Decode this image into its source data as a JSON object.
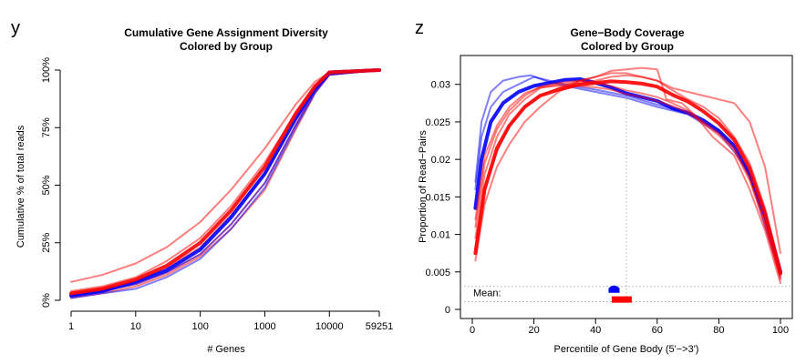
{
  "chart_data": [
    {
      "panel_letter": "y",
      "type": "line",
      "title_line1": "Cumulative Gene Assignment Diversity",
      "title_line2": "Colored by Group",
      "xlabel": "# Genes",
      "ylabel": "Cumulative % of total reads",
      "x_scale": "log",
      "xlim": [
        1,
        59251
      ],
      "ylim": [
        0,
        100
      ],
      "x_ticks": [
        1,
        10,
        100,
        1000,
        10000,
        59251
      ],
      "x_tick_labels": [
        "1",
        "10",
        "100",
        "1000",
        "10000",
        "59251"
      ],
      "y_ticks": [
        0,
        25,
        50,
        75,
        100
      ],
      "y_tick_labels": [
        "0%",
        "25%",
        "50%",
        "75%",
        "100%"
      ],
      "colors": {
        "red": "#ff0000",
        "blue": "#0000ff"
      },
      "series": [
        {
          "color": "red",
          "alpha": 0.5,
          "width": 2,
          "x": [
            1,
            3,
            10,
            30,
            100,
            300,
            1000,
            3000,
            6000,
            10000,
            59251
          ],
          "y": [
            8,
            11,
            16,
            23,
            34,
            48,
            66,
            85,
            95,
            99,
            100
          ]
        },
        {
          "color": "red",
          "alpha": 0.5,
          "width": 2,
          "x": [
            1,
            3,
            10,
            30,
            100,
            300,
            1000,
            3000,
            6000,
            10000,
            59251
          ],
          "y": [
            4,
            6,
            10,
            17,
            27,
            41,
            60,
            81,
            93,
            99,
            100
          ]
        },
        {
          "color": "red",
          "alpha": 0.5,
          "width": 2,
          "x": [
            1,
            3,
            10,
            30,
            100,
            300,
            1000,
            3000,
            6000,
            10000,
            59251
          ],
          "y": [
            3,
            5,
            8,
            14,
            23,
            37,
            55,
            78,
            92,
            98,
            100
          ]
        },
        {
          "color": "red",
          "alpha": 0.5,
          "width": 2,
          "x": [
            1,
            3,
            10,
            30,
            100,
            300,
            1000,
            3000,
            6000,
            10000,
            59251
          ],
          "y": [
            2,
            4,
            7,
            12,
            20,
            33,
            51,
            76,
            91,
            98,
            100
          ]
        },
        {
          "color": "red",
          "alpha": 0.5,
          "width": 2,
          "x": [
            1,
            3,
            10,
            30,
            100,
            300,
            1000,
            3000,
            6000,
            10000,
            59251
          ],
          "y": [
            1,
            3,
            6,
            11,
            19,
            31,
            48,
            74,
            90,
            98,
            100
          ]
        },
        {
          "color": "blue",
          "alpha": 0.5,
          "width": 2,
          "x": [
            1,
            3,
            10,
            30,
            100,
            300,
            1000,
            3000,
            6000,
            10000,
            59251
          ],
          "y": [
            2,
            4,
            7,
            12,
            20,
            33,
            51,
            76,
            91,
            98,
            100
          ]
        },
        {
          "color": "blue",
          "alpha": 0.5,
          "width": 2,
          "x": [
            1,
            3,
            10,
            30,
            100,
            300,
            1000,
            3000,
            6000,
            10000,
            59251
          ],
          "y": [
            1,
            3,
            5,
            10,
            18,
            31,
            49,
            75,
            90,
            98,
            100
          ]
        },
        {
          "color": "blue",
          "alpha": 0.9,
          "width": 4,
          "x": [
            1,
            3,
            10,
            30,
            100,
            300,
            1000,
            3000,
            6000,
            10000,
            59251
          ],
          "y": [
            2,
            4,
            8,
            13,
            22,
            36,
            55,
            79,
            92,
            99,
            100
          ]
        },
        {
          "color": "red",
          "alpha": 0.9,
          "width": 4,
          "x": [
            1,
            3,
            10,
            30,
            100,
            300,
            1000,
            3000,
            6000,
            10000,
            59251
          ],
          "y": [
            3,
            5,
            9,
            15,
            25,
            39,
            58,
            81,
            93,
            99,
            100
          ]
        }
      ]
    },
    {
      "panel_letter": "z",
      "type": "line",
      "title_line1": "Gene−Body Coverage",
      "title_line2": "Colored by Group",
      "xlabel": "Percentile of Gene Body (5'−>3')",
      "ylabel": "Proportion of Read−Pairs",
      "xlim": [
        0,
        100
      ],
      "ylim": [
        0,
        0.033
      ],
      "x_ticks": [
        0,
        20,
        40,
        60,
        80,
        100
      ],
      "x_tick_labels": [
        "0",
        "20",
        "40",
        "60",
        "80",
        "100"
      ],
      "y_ticks": [
        0,
        0.005,
        0.01,
        0.015,
        0.02,
        0.025,
        0.03
      ],
      "y_tick_labels": [
        "0",
        "0.005",
        "0.01",
        "0.015",
        "0.02",
        "0.025",
        "0.03"
      ],
      "mean_label": "Mean:",
      "mean_markers": {
        "blue": 46,
        "red": 48.5
      },
      "mean_marker_y": {
        "blue": 0.0027,
        "red": 0.0015
      },
      "mean_reference_x": 50,
      "colors": {
        "red": "#ff0000",
        "blue": "#0000ff"
      },
      "series": [
        {
          "color": "blue",
          "alpha": 0.5,
          "width": 2,
          "x": [
            1,
            3,
            6,
            10,
            15,
            19,
            25,
            30,
            40,
            50,
            60,
            70,
            80,
            85,
            90,
            95,
            100
          ],
          "y": [
            0.017,
            0.025,
            0.029,
            0.0305,
            0.031,
            0.0312,
            0.0303,
            0.0298,
            0.029,
            0.0282,
            0.027,
            0.026,
            0.0235,
            0.021,
            0.018,
            0.011,
            0.0045
          ]
        },
        {
          "color": "blue",
          "alpha": 0.5,
          "width": 2,
          "x": [
            1,
            3,
            6,
            10,
            15,
            20,
            25,
            30,
            40,
            50,
            60,
            70,
            80,
            85,
            90,
            95,
            100
          ],
          "y": [
            0.016,
            0.023,
            0.027,
            0.029,
            0.03,
            0.031,
            0.0305,
            0.03,
            0.0293,
            0.0285,
            0.0273,
            0.0262,
            0.0238,
            0.0215,
            0.0182,
            0.012,
            0.0048
          ]
        },
        {
          "color": "blue",
          "alpha": 0.9,
          "width": 4,
          "x": [
            1,
            3,
            6,
            10,
            15,
            20,
            25,
            30,
            35,
            40,
            45,
            50,
            60,
            65,
            70,
            75,
            80,
            85,
            90,
            95,
            100
          ],
          "y": [
            0.0135,
            0.02,
            0.025,
            0.0275,
            0.029,
            0.0298,
            0.0302,
            0.0306,
            0.0307,
            0.0302,
            0.0296,
            0.0288,
            0.0278,
            0.0268,
            0.0262,
            0.0252,
            0.0238,
            0.0218,
            0.018,
            0.0125,
            0.005
          ]
        },
        {
          "color": "red",
          "alpha": 0.5,
          "width": 2,
          "x": [
            1,
            4,
            8,
            12,
            17,
            22,
            28,
            35,
            40,
            45,
            50,
            55,
            60,
            63,
            68,
            72,
            78,
            85,
            90,
            95,
            100
          ],
          "y": [
            0.0065,
            0.014,
            0.019,
            0.022,
            0.025,
            0.027,
            0.029,
            0.0305,
            0.031,
            0.0318,
            0.032,
            0.0322,
            0.032,
            0.028,
            0.0275,
            0.026,
            0.023,
            0.0205,
            0.016,
            0.0105,
            0.0035
          ]
        },
        {
          "color": "red",
          "alpha": 0.5,
          "width": 2,
          "x": [
            1,
            4,
            8,
            12,
            17,
            22,
            28,
            35,
            40,
            45,
            50,
            55,
            60,
            65,
            70,
            75,
            80,
            85,
            90,
            95,
            100
          ],
          "y": [
            0.008,
            0.016,
            0.021,
            0.0245,
            0.027,
            0.0285,
            0.0295,
            0.0305,
            0.031,
            0.0315,
            0.0315,
            0.031,
            0.0305,
            0.0295,
            0.029,
            0.0285,
            0.028,
            0.0275,
            0.025,
            0.019,
            0.0075
          ]
        },
        {
          "color": "red",
          "alpha": 0.5,
          "width": 2,
          "x": [
            1,
            4,
            8,
            12,
            17,
            22,
            28,
            35,
            40,
            45,
            50,
            55,
            60,
            65,
            70,
            75,
            80,
            85,
            90,
            95,
            100
          ],
          "y": [
            0.0095,
            0.018,
            0.023,
            0.026,
            0.028,
            0.0295,
            0.03,
            0.0302,
            0.0305,
            0.031,
            0.0312,
            0.031,
            0.0305,
            0.0292,
            0.028,
            0.027,
            0.0255,
            0.023,
            0.0195,
            0.0135,
            0.0055
          ]
        },
        {
          "color": "red",
          "alpha": 0.5,
          "width": 2,
          "x": [
            1,
            4,
            8,
            12,
            17,
            22,
            28,
            35,
            40,
            45,
            50,
            55,
            60,
            65,
            70,
            75,
            80,
            85,
            90,
            95,
            100
          ],
          "y": [
            0.011,
            0.0195,
            0.024,
            0.0265,
            0.0285,
            0.0297,
            0.0302,
            0.0305,
            0.0302,
            0.0298,
            0.0292,
            0.0288,
            0.0283,
            0.0275,
            0.0265,
            0.025,
            0.0235,
            0.0215,
            0.0175,
            0.0115,
            0.004
          ]
        },
        {
          "color": "red",
          "alpha": 0.5,
          "width": 2,
          "x": [
            1,
            4,
            8,
            12,
            17,
            22,
            28,
            35,
            40,
            45,
            50,
            55,
            60,
            65,
            70,
            75,
            80,
            85,
            90,
            95,
            100
          ],
          "y": [
            0.012,
            0.0205,
            0.0245,
            0.027,
            0.0288,
            0.0296,
            0.0298,
            0.0298,
            0.0296,
            0.0293,
            0.0287,
            0.0283,
            0.0278,
            0.0271,
            0.0262,
            0.0248,
            0.0232,
            0.0212,
            0.0172,
            0.0113,
            0.0042
          ]
        },
        {
          "color": "red",
          "alpha": 0.9,
          "width": 4,
          "x": [
            1,
            4,
            8,
            12,
            17,
            22,
            28,
            35,
            40,
            45,
            50,
            55,
            60,
            65,
            70,
            75,
            80,
            85,
            90,
            95,
            100
          ],
          "y": [
            0.0075,
            0.016,
            0.0215,
            0.0245,
            0.027,
            0.0285,
            0.0293,
            0.03,
            0.0302,
            0.0304,
            0.0303,
            0.0301,
            0.0297,
            0.0286,
            0.0277,
            0.0264,
            0.0248,
            0.0226,
            0.0188,
            0.0128,
            0.0048
          ]
        }
      ]
    }
  ]
}
